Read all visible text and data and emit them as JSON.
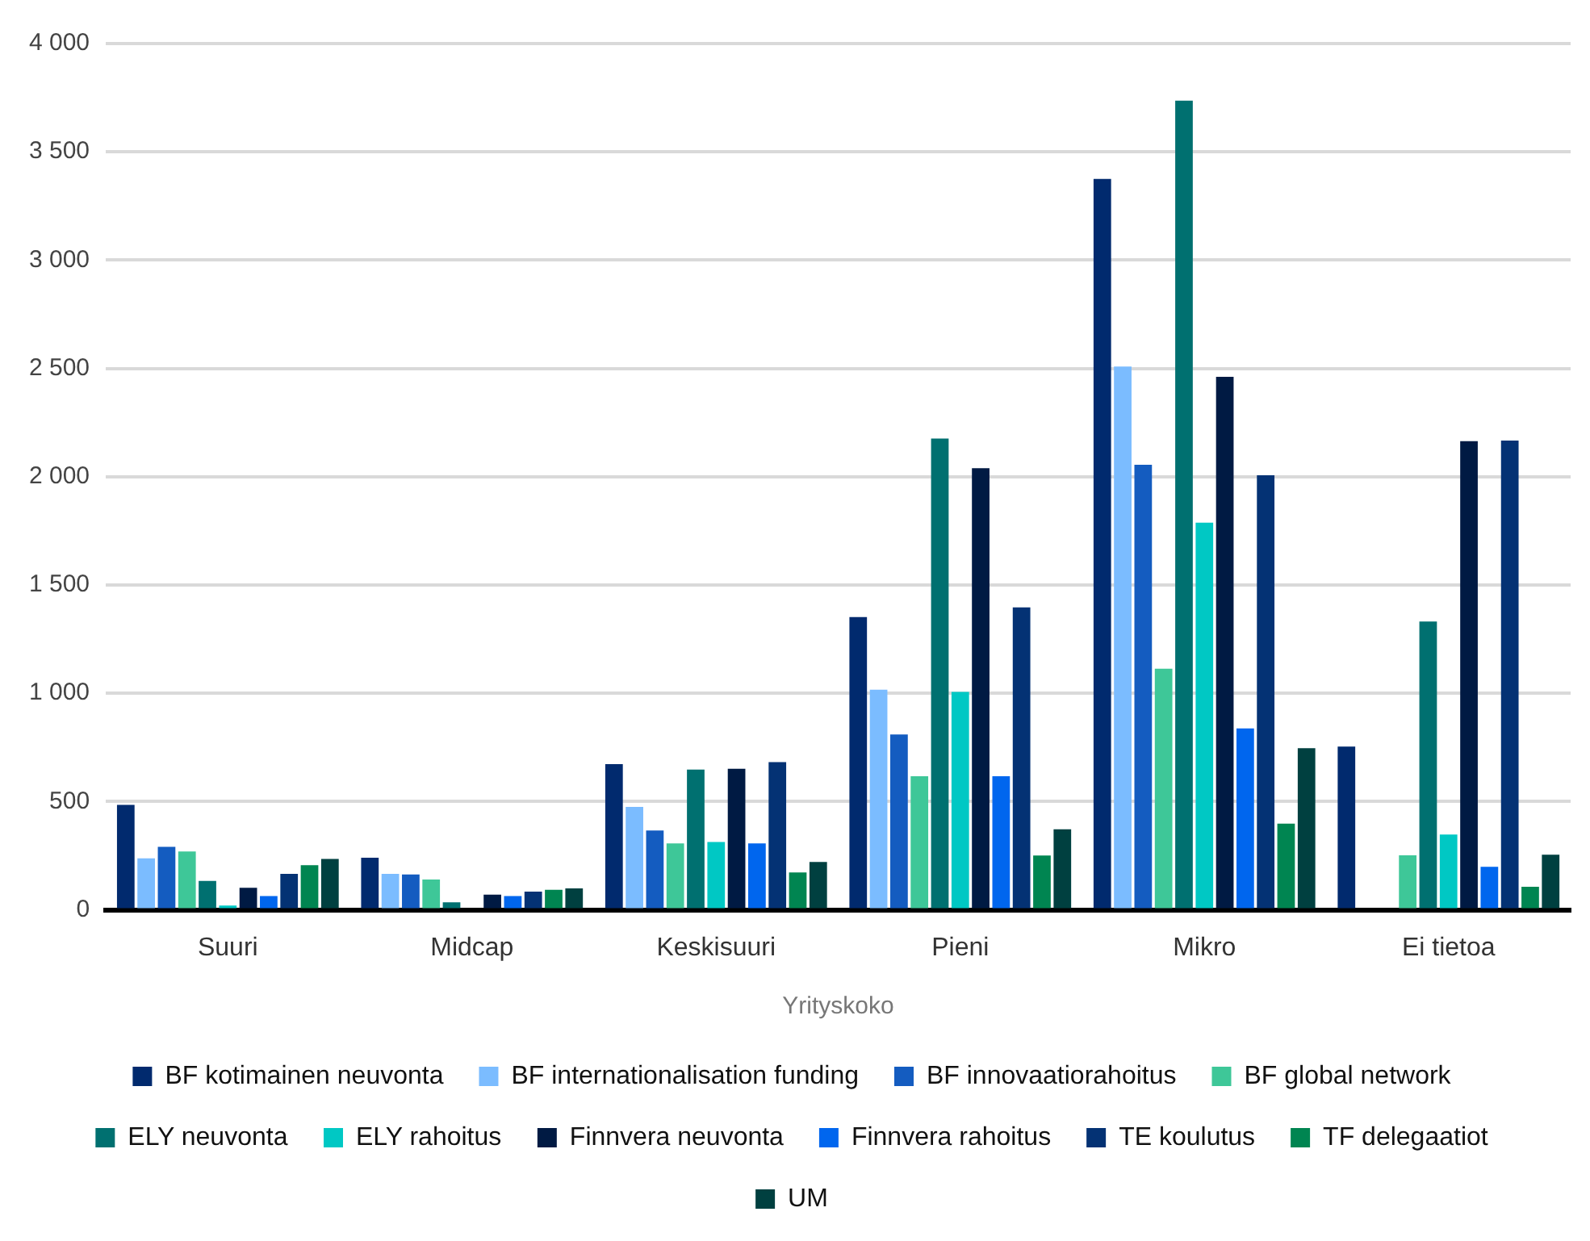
{
  "chart_data": {
    "type": "bar",
    "xlabel": "Yrityskoko",
    "categories": [
      "Suuri",
      "Midcap",
      "Keskisuuri",
      "Pieni",
      "Mikro",
      "Ei tietoa"
    ],
    "ylim": [
      0,
      4000
    ],
    "yticks": [
      {
        "value": 0,
        "label": "0"
      },
      {
        "value": 500,
        "label": "500"
      },
      {
        "value": 1000,
        "label": "1 000"
      },
      {
        "value": 1500,
        "label": "1 500"
      },
      {
        "value": 2000,
        "label": "2 000"
      },
      {
        "value": 2500,
        "label": "2 500"
      },
      {
        "value": 3000,
        "label": "3 000"
      },
      {
        "value": 3500,
        "label": "3 500"
      },
      {
        "value": 4000,
        "label": "4 000"
      }
    ],
    "grid": "y",
    "legend": "bottom",
    "series": [
      {
        "name": "BF kotimainen neuvonta",
        "color": "#012a6e",
        "values": [
          485,
          241,
          673,
          1352,
          3375,
          754
        ]
      },
      {
        "name": "BF internationalisation funding",
        "color": "#7bbcff",
        "values": [
          238,
          166,
          475,
          1017,
          2509,
          null
        ]
      },
      {
        "name": "BF innovaatiorahoitus",
        "color": "#145cc0",
        "values": [
          291,
          163,
          366,
          810,
          2055,
          null
        ]
      },
      {
        "name": "BF global network",
        "color": "#3ec798",
        "values": [
          270,
          140,
          307,
          617,
          1113,
          252
        ]
      },
      {
        "name": "ELY neuvonta",
        "color": "#007070",
        "values": [
          134,
          35,
          648,
          2176,
          3736,
          1331
        ]
      },
      {
        "name": "ELY rahoitus",
        "color": "#00c8c4",
        "values": [
          20,
          null,
          313,
          1006,
          1788,
          348
        ]
      },
      {
        "name": "Finnvera neuvonta",
        "color": "#001a43",
        "values": [
          102,
          70,
          651,
          2039,
          2461,
          2164
        ]
      },
      {
        "name": "Finnvera rahoitus",
        "color": "#0066ee",
        "values": [
          64,
          64,
          307,
          617,
          838,
          199
        ]
      },
      {
        "name": "TE koulutus",
        "color": "#043274",
        "values": [
          166,
          84,
          682,
          1397,
          2007,
          2167
        ]
      },
      {
        "name": "TF delegaatiot",
        "color": "#008551",
        "values": [
          206,
          93,
          173,
          251,
          398,
          107
        ]
      },
      {
        "name": "UM",
        "color": "#004040",
        "values": [
          235,
          99,
          221,
          372,
          746,
          255
        ]
      }
    ]
  }
}
